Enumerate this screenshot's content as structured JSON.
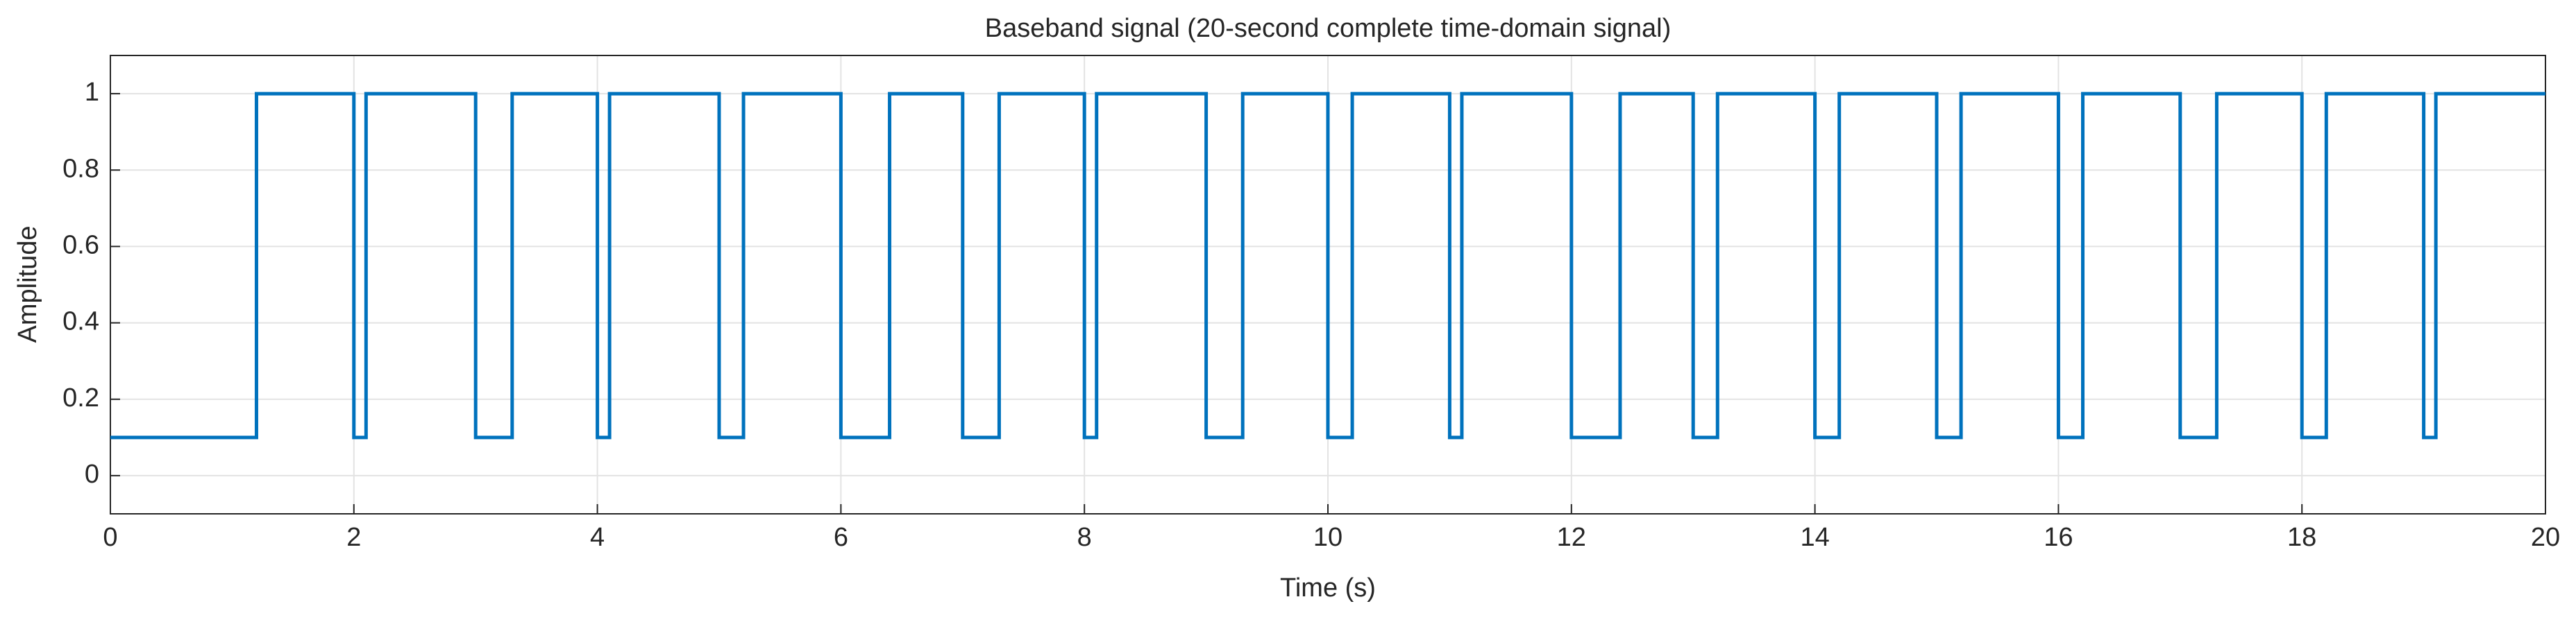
{
  "chart_data": {
    "type": "line",
    "title": "Baseband signal (20-second complete time-domain signal)",
    "x_label": "Time (s)",
    "y_label": "Amplitude",
    "xlim": [
      0,
      20
    ],
    "ylim": [
      -0.1,
      1.1
    ],
    "xticks": [
      0,
      2,
      4,
      6,
      8,
      10,
      12,
      14,
      16,
      18,
      20
    ],
    "yticks": [
      0,
      0.2,
      0.4,
      0.6,
      0.8,
      1
    ],
    "grid": true,
    "series": [
      {
        "color": "#0072bd",
        "x": [
          0,
          1.2,
          1.2,
          2,
          2,
          2.1,
          2.1,
          3,
          3,
          3.3,
          3.3,
          4,
          4,
          4.1,
          4.1,
          5,
          5,
          5.2,
          5.2,
          6,
          6,
          6.4,
          6.4,
          7,
          7,
          7.3,
          7.3,
          8,
          8,
          8.1,
          8.1,
          9,
          9,
          9.3,
          9.3,
          10,
          10,
          10.2,
          10.2,
          11,
          11,
          11.1,
          11.1,
          12,
          12,
          12.4,
          12.4,
          13,
          13,
          13.2,
          13.2,
          14,
          14,
          14.2,
          14.2,
          15,
          15,
          15.2,
          15.2,
          16,
          16,
          16.2,
          16.2,
          17,
          17,
          17.3,
          17.3,
          18,
          18,
          18.2,
          18.2,
          19,
          19,
          19.1,
          19.1,
          20
        ],
        "values": [
          0.1,
          0.1,
          1,
          1,
          0.1,
          0.1,
          1,
          1,
          0.1,
          0.1,
          1,
          1,
          0.1,
          0.1,
          1,
          1,
          0.1,
          0.1,
          1,
          1,
          0.1,
          0.1,
          1,
          1,
          0.1,
          0.1,
          1,
          1,
          0.1,
          0.1,
          1,
          1,
          0.1,
          0.1,
          1,
          1,
          0.1,
          0.1,
          1,
          1,
          0.1,
          0.1,
          1,
          1,
          0.1,
          0.1,
          1,
          1,
          0.1,
          0.1,
          1,
          1,
          0.1,
          0.1,
          1,
          1,
          0.1,
          0.1,
          1,
          1,
          0.1,
          0.1,
          1,
          1,
          0.1,
          0.1,
          1,
          1,
          0.1,
          0.1,
          1,
          1,
          0.1,
          0.1,
          1,
          1
        ]
      }
    ]
  }
}
